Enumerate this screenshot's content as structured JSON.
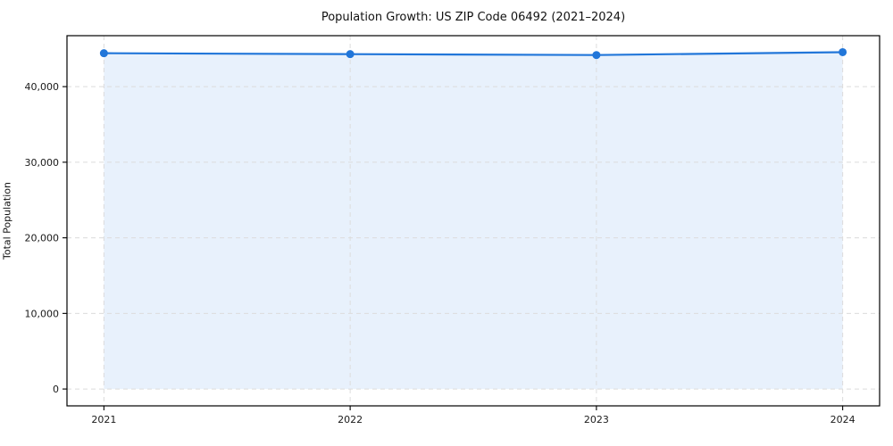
{
  "chart_data": {
    "type": "area",
    "title": "Population Growth: US ZIP Code 06492 (2021–2024)",
    "ylabel": "Total Population",
    "xlabel": "",
    "x": [
      2021,
      2022,
      2023,
      2024
    ],
    "series": [
      {
        "name": "Total Population",
        "values": [
          44420,
          44300,
          44180,
          44560
        ]
      }
    ],
    "xticks": {
      "values": [
        2021,
        2022,
        2023,
        2024
      ],
      "labels": [
        "2021",
        "2022",
        "2023",
        "2024"
      ]
    },
    "yticks": {
      "values": [
        0,
        10000,
        20000,
        30000,
        40000
      ],
      "labels": [
        "0",
        "10,000",
        "20,000",
        "30,000",
        "40,000"
      ]
    },
    "xlim": [
      2020.85,
      2024.15
    ],
    "ylim": [
      -2230,
      46740
    ],
    "grid": true,
    "legend": "none",
    "colors": {
      "line": "#2176d9",
      "marker": "#2176d9",
      "fill": "#e8f1fc",
      "grid": "#dcdcdc",
      "spine": "#000000",
      "tick_text": "#1a1a1a"
    }
  }
}
